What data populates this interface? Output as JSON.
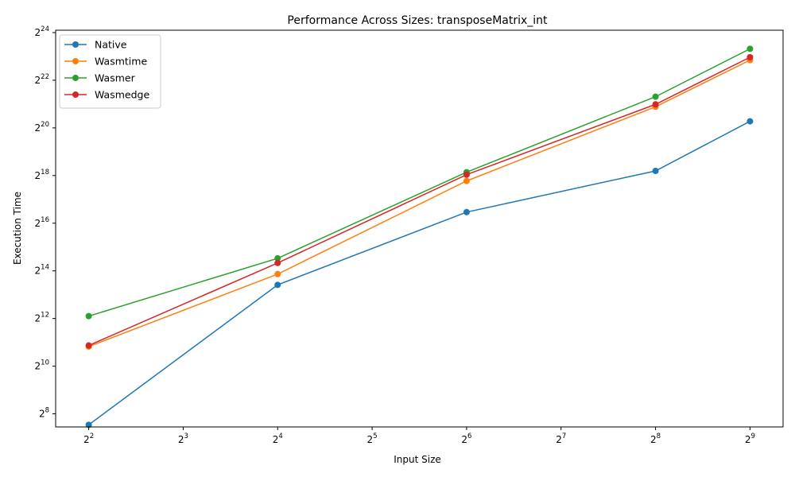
{
  "chart_data": {
    "type": "line",
    "title": "Performance Across Sizes: transposeMatrix_int",
    "xlabel": "Input Size",
    "ylabel": "Execution Time",
    "x_scale": "log2",
    "y_scale": "log2",
    "xlim_log2": [
      1.65,
      9.35
    ],
    "ylim_log2": [
      7.45,
      24.1
    ],
    "x_tick_exponents": [
      2,
      3,
      4,
      5,
      6,
      7,
      8,
      9
    ],
    "y_tick_exponents": [
      8,
      10,
      12,
      14,
      16,
      18,
      20,
      22,
      24
    ],
    "tick_base": "2",
    "grid": false,
    "legend_position": "top-left",
    "x": [
      4,
      16,
      64,
      256,
      512
    ],
    "series": [
      {
        "name": "Native",
        "color": "#1f77b4",
        "values": [
          186,
          10900,
          90500,
          300000,
          1270000
        ]
      },
      {
        "name": "Wasmtime",
        "color": "#ff7f0e",
        "values": [
          1810,
          14900,
          224000,
          1940000,
          7530000
        ]
      },
      {
        "name": "Wasmer",
        "color": "#2ca02c",
        "values": [
          4390,
          23600,
          289000,
          2600000,
          10470000
        ]
      },
      {
        "name": "Wasmedge",
        "color": "#d62728",
        "values": [
          1870,
          20600,
          269000,
          2080000,
          8190000
        ]
      }
    ]
  }
}
